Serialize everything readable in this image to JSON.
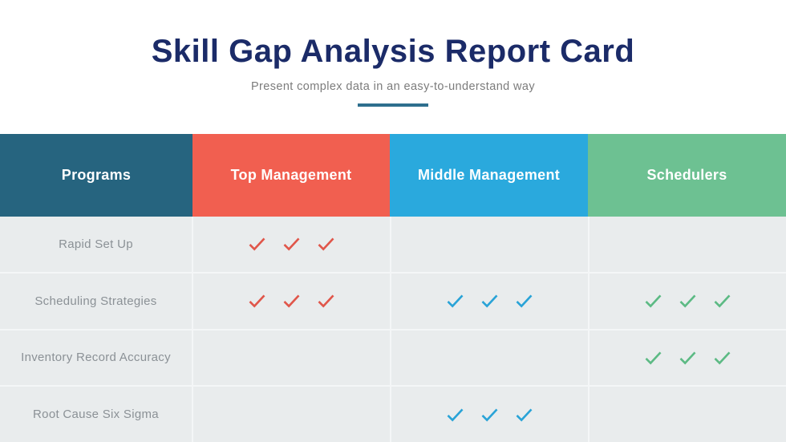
{
  "header": {
    "title": "Skill Gap Analysis Report Card",
    "subtitle": "Present complex data in an easy-to-understand way",
    "underline_color": "#2e6f8e",
    "title_color": "#1b2b68"
  },
  "table": {
    "columns": [
      {
        "key": "programs",
        "label": "Programs",
        "header_color": "#26647f"
      },
      {
        "key": "top_management",
        "label": "Top Management",
        "header_color": "#f15f50"
      },
      {
        "key": "middle_management",
        "label": "Middle Management",
        "header_color": "#2aa9dd"
      },
      {
        "key": "schedulers",
        "label": "Schedulers",
        "header_color": "#6dc192"
      }
    ],
    "check_colors": {
      "top_management": "#e0564a",
      "middle_management": "#29a3d7",
      "schedulers": "#5cba84"
    },
    "check_icon": "checkmark-icon",
    "rows": [
      {
        "program": "Rapid Set Up",
        "checks": {
          "top_management": 3,
          "middle_management": 0,
          "schedulers": 0
        }
      },
      {
        "program": "Scheduling Strategies",
        "checks": {
          "top_management": 3,
          "middle_management": 3,
          "schedulers": 3
        }
      },
      {
        "program": "Inventory Record Accuracy",
        "checks": {
          "top_management": 0,
          "middle_management": 0,
          "schedulers": 3
        }
      },
      {
        "program": "Root Cause Six Sigma",
        "checks": {
          "top_management": 0,
          "middle_management": 3,
          "schedulers": 0
        }
      }
    ]
  },
  "chart_data": {
    "type": "table",
    "title": "Skill Gap Analysis Report Card",
    "subtitle": "Present complex data in an easy-to-understand way",
    "columns": [
      "Programs",
      "Top Management",
      "Middle Management",
      "Schedulers"
    ],
    "rows": [
      [
        "Rapid Set Up",
        3,
        0,
        0
      ],
      [
        "Scheduling Strategies",
        3,
        3,
        3
      ],
      [
        "Inventory Record Accuracy",
        0,
        0,
        3
      ],
      [
        "Root Cause Six Sigma",
        0,
        3,
        0
      ]
    ],
    "cell_value_meaning": "number of checkmarks shown in cell"
  }
}
